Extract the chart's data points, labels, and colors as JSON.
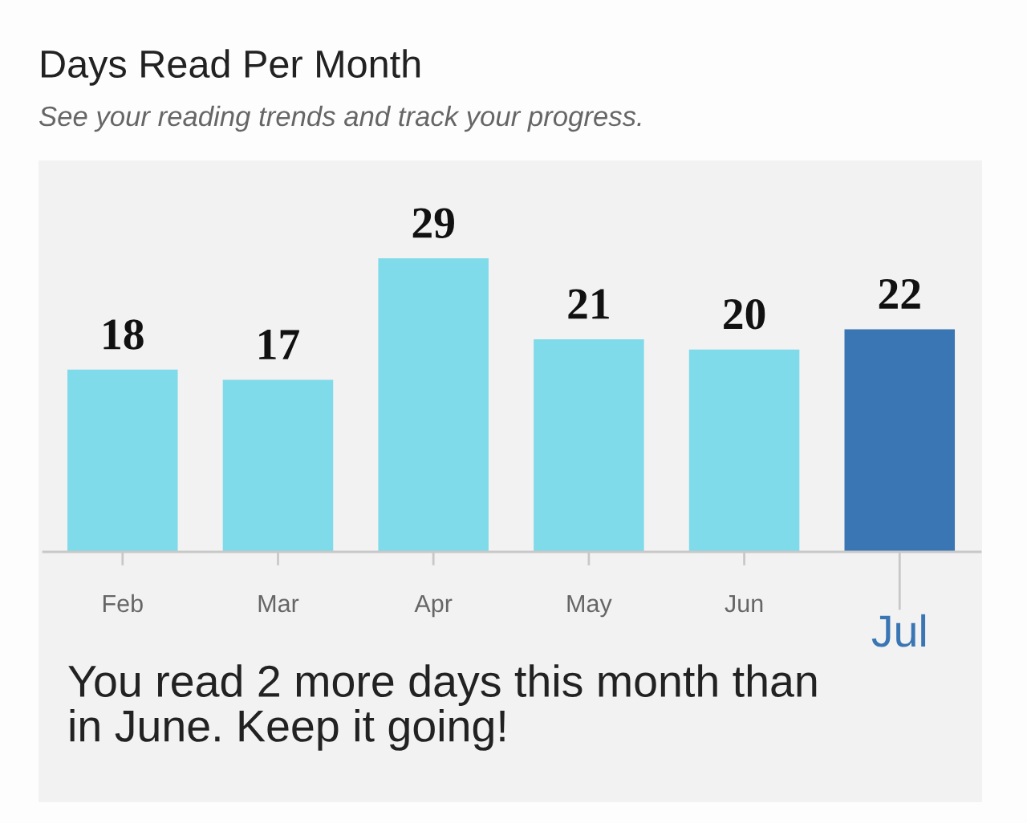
{
  "chart_data": {
    "type": "bar",
    "title": "Days Read Per Month",
    "subtitle": "See your reading trends and track your progress.",
    "categories": [
      "Feb",
      "Mar",
      "Apr",
      "May",
      "Jun",
      "Jul"
    ],
    "values": [
      18,
      17,
      29,
      21,
      20,
      22
    ],
    "colors": [
      "#7fdbe9",
      "#7fdbe9",
      "#7fdbe9",
      "#7fdbe9",
      "#7fdbe9",
      "#3b76b4"
    ],
    "data_labels": true,
    "tick_labels": "x",
    "grid": false,
    "legend": false,
    "annotations": [
      "You read 2 more days this month than\nin June. Keep it going!"
    ]
  }
}
